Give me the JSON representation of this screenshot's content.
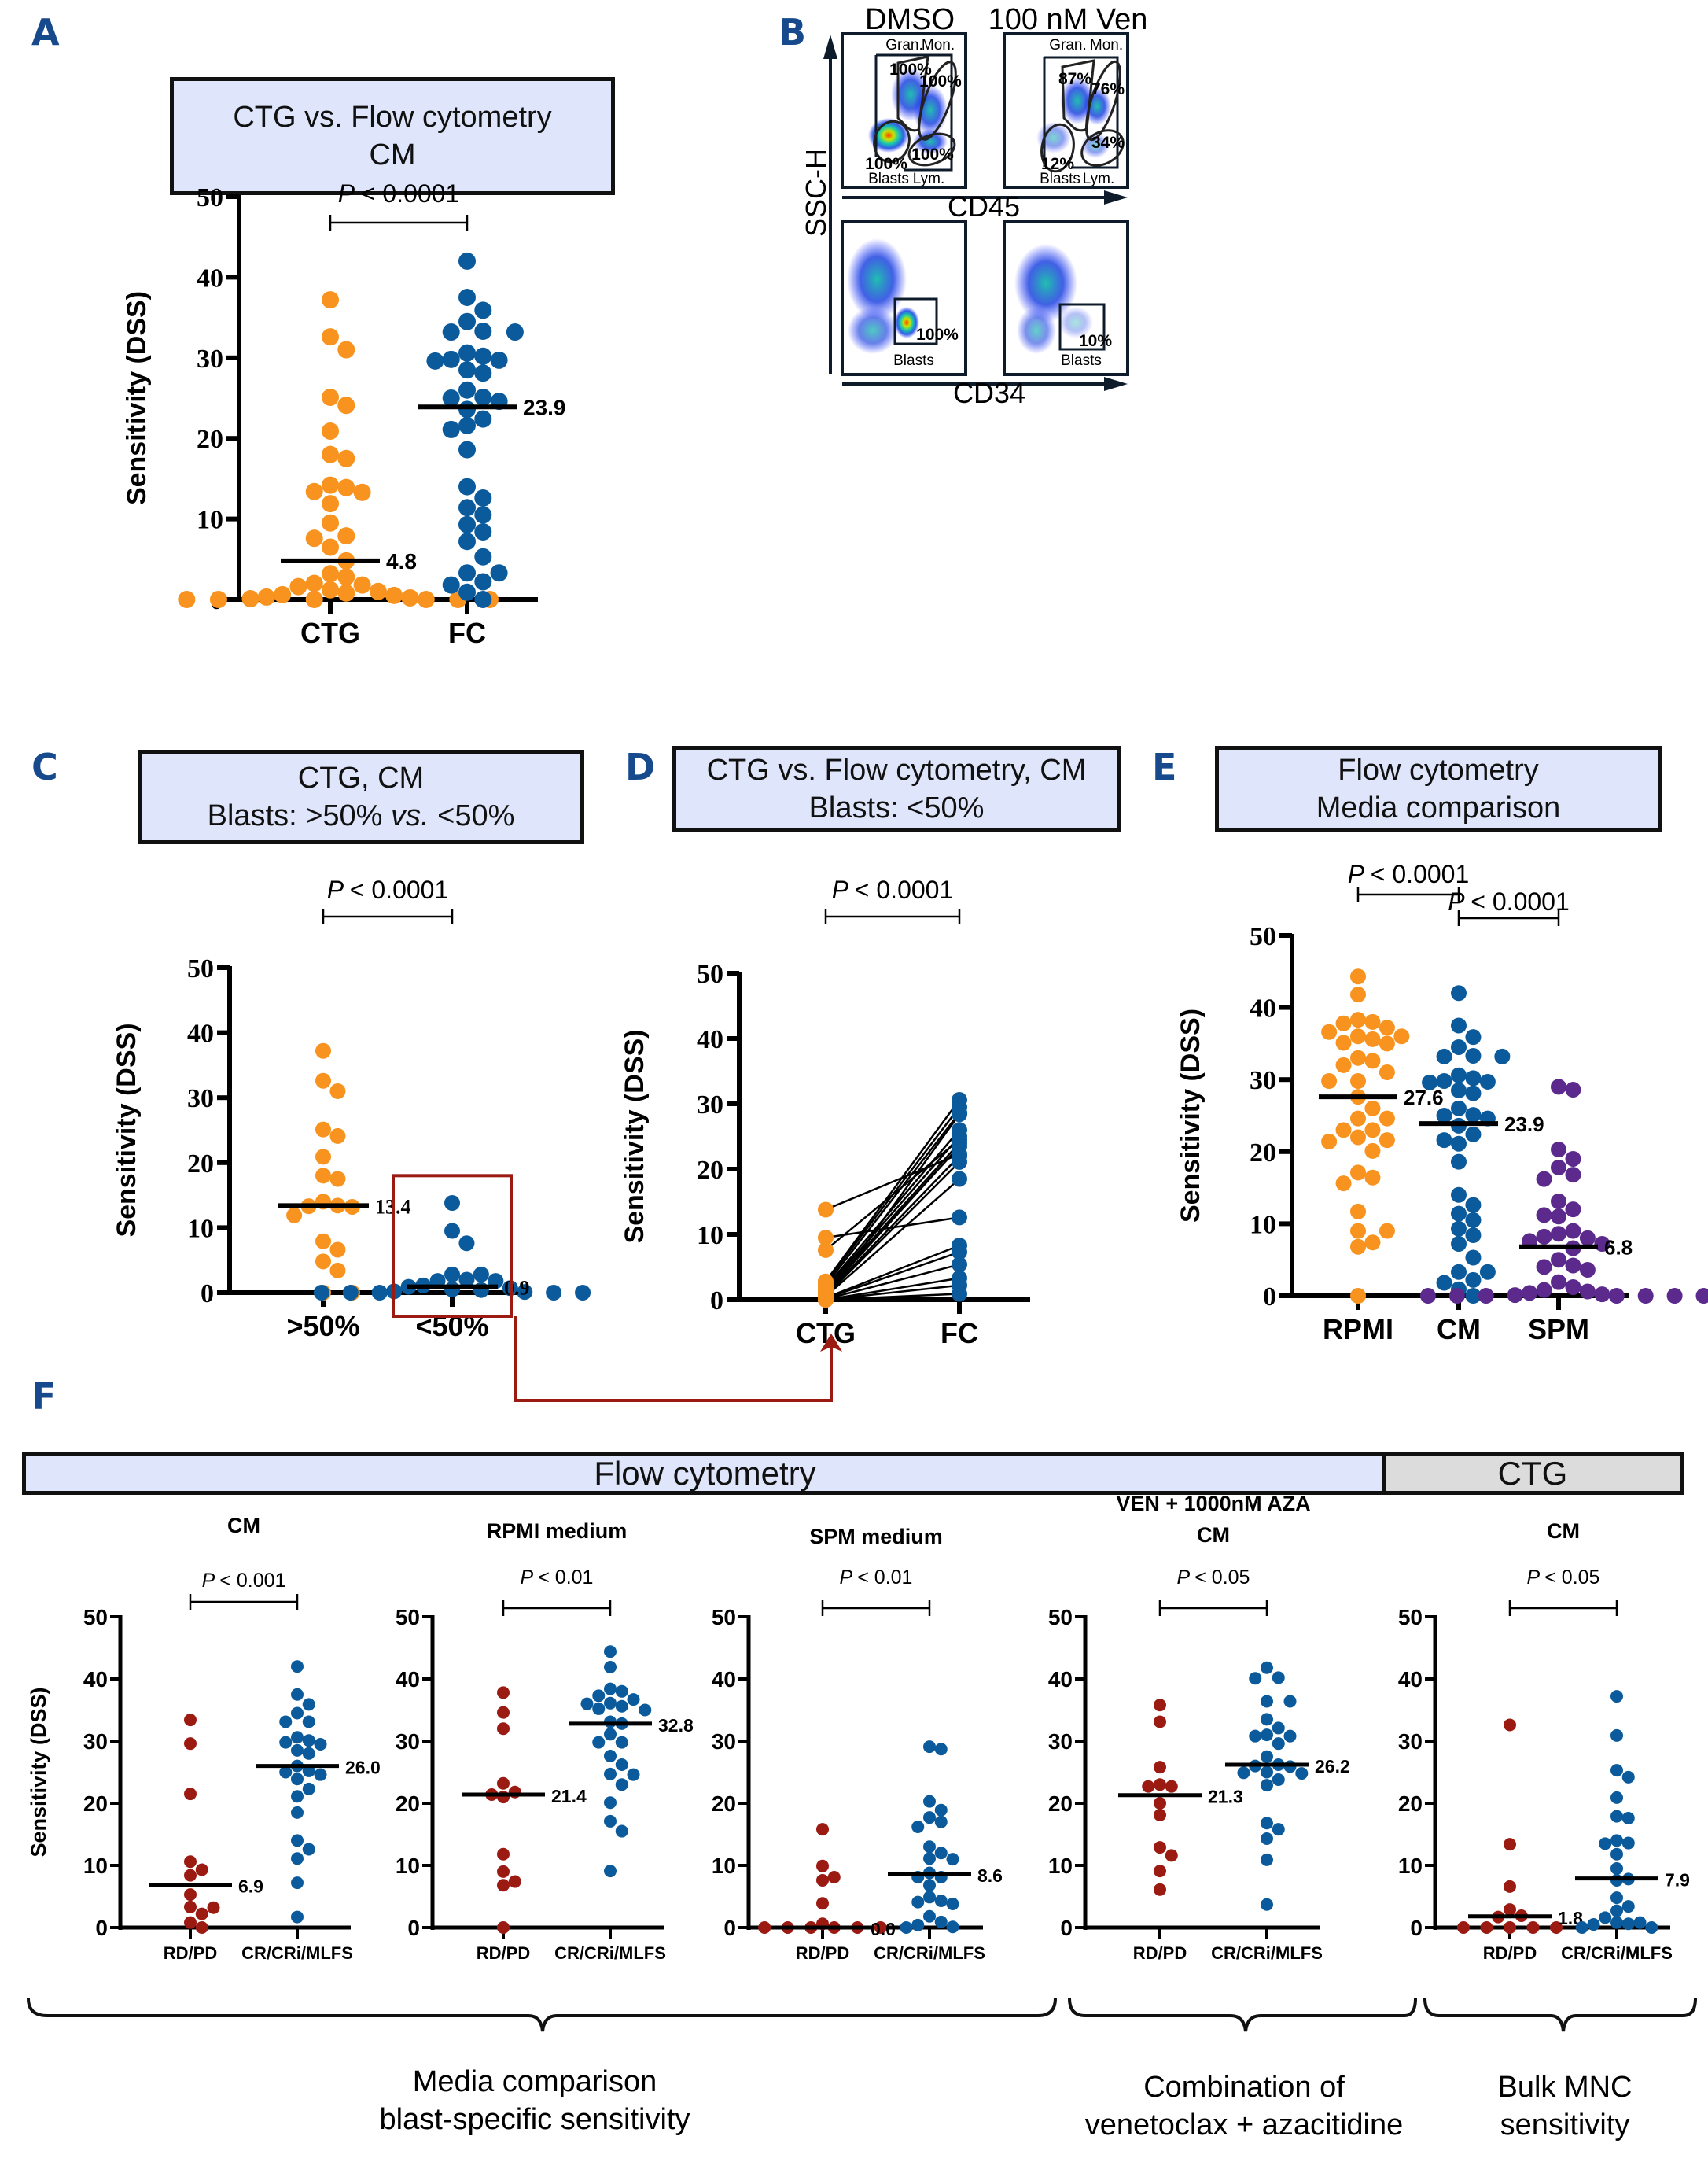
{
  "colors": {
    "orange": "#f7931e",
    "blue": "#0b5a9b",
    "red": "#9b1b13",
    "purple": "#5b2a8c",
    "title_fill": "#dfe6fb",
    "ctg_fill": "#dcdcdc",
    "arrow": "#9b1b13",
    "panel_letter": "#174a8c"
  },
  "panel_letters": {
    "A": "A",
    "B": "B",
    "C": "C",
    "D": "D",
    "E": "E",
    "F": "F"
  },
  "panelA": {
    "title_line1": "CTG vs. Flow cytometry",
    "title_line2": "CM"
  },
  "panelB": {
    "col_titles": [
      "DMSO",
      "100 nM Ven"
    ],
    "y_axis": "SSC-H",
    "x_axis_top": "CD45",
    "x_axis_bottom": "CD34",
    "gate_labels": {
      "gran": "Gran.",
      "mon": "Mon.",
      "blasts": "Blasts",
      "lym": "Lym."
    },
    "dmso_top": {
      "gran": "100%",
      "mon": "100%",
      "lym": "100%",
      "blasts": "100%"
    },
    "ven_top": {
      "gran": "87%",
      "mon": "76%",
      "lym": "34%",
      "blasts": "12%"
    },
    "dmso_bottom": {
      "blasts_pct": "100%",
      "label": "Blasts"
    },
    "ven_bottom": {
      "blasts_pct": "10%",
      "label": "Blasts"
    }
  },
  "panelC": {
    "title_line1": "CTG, CM",
    "title_line2a": "Blasts: >50% ",
    "title_line2b": "vs.",
    "title_line2c": " <50%"
  },
  "panelD": {
    "title_line1": "CTG vs. Flow cytometry, CM",
    "title_line2": "Blasts: <50%"
  },
  "panelE": {
    "title_line1": "Flow cytometry",
    "title_line2": "Media comparison"
  },
  "panelF": {
    "band_flow": "Flow cytometry",
    "band_ctg": "CTG",
    "brace_labels": [
      {
        "line1": "Media comparison",
        "line2": "blast-specific sensitivity"
      },
      {
        "line1": "Combination of",
        "line2": "venetoclax + azacitidine"
      },
      {
        "line1": "Bulk MNC",
        "line2": "sensitivity"
      }
    ]
  },
  "chart_data": [
    {
      "id": "A",
      "type": "scatter",
      "title": "CTG vs. Flow cytometry CM",
      "ylabel": "Sensitivity (DSS)",
      "ylim": [
        0,
        50
      ],
      "yticks": [
        0,
        10,
        20,
        30,
        40,
        50
      ],
      "categories": [
        "CTG",
        "FC"
      ],
      "pvalues": [
        {
          "from": 0,
          "to": 1,
          "text": "< 0.0001"
        }
      ],
      "series": [
        {
          "name": "CTG",
          "color": "orange",
          "median": 4.8,
          "median_label": "4.8",
          "values": [
            37.2,
            32.6,
            31.0,
            25.1,
            24.1,
            20.9,
            18.0,
            17.5,
            13.9,
            14.2,
            13.4,
            13.3,
            11.9,
            9.5,
            7.9,
            7.6,
            6.5,
            4.8,
            3.2,
            2.8,
            2.0,
            1.8,
            1.6,
            1.2,
            1.0,
            0.8,
            0.6,
            0.5,
            0.3,
            0.2,
            0.1,
            0.0,
            0.0,
            0.0,
            0.0,
            0.0,
            0.0
          ]
        },
        {
          "name": "FC",
          "color": "blue",
          "median": 23.9,
          "median_label": "23.9",
          "values": [
            42.0,
            37.5,
            35.9,
            34.5,
            33.2,
            33.2,
            33.3,
            30.2,
            29.7,
            29.8,
            30.6,
            29.6,
            28.1,
            28.5,
            26.0,
            25.0,
            24.6,
            25.1,
            23.6,
            22.4,
            21.6,
            21.1,
            18.6,
            14.0,
            12.6,
            11.4,
            10.5,
            9.3,
            8.4,
            7.2,
            5.3,
            3.3,
            3.3,
            2.2,
            1.8,
            0.9,
            0.0
          ]
        }
      ]
    },
    {
      "id": "C",
      "type": "scatter",
      "title": "CTG, CM Blasts: >50% vs. <50%",
      "ylabel": "Sensitivity (DSS)",
      "ylim": [
        0,
        50
      ],
      "yticks": [
        0,
        10,
        20,
        30,
        40,
        50
      ],
      "categories": [
        ">50%",
        "<50%"
      ],
      "pvalues": [
        {
          "from": 0,
          "to": 1,
          "text": "< 0.0001"
        }
      ],
      "series": [
        {
          "name": ">50%",
          "color": "orange",
          "median": 13.4,
          "median_label": "13.4",
          "values": [
            37.2,
            32.6,
            31.0,
            25.1,
            24.1,
            20.9,
            18.0,
            17.5,
            14.0,
            13.3,
            13.4,
            13.2,
            11.9,
            7.9,
            6.6,
            4.8,
            3.4,
            0.0,
            0.0
          ]
        },
        {
          "name": "<50%",
          "color": "blue",
          "median": 0.9,
          "median_label": "0.9",
          "values": [
            13.8,
            9.5,
            7.6,
            2.8,
            2.8,
            2.0,
            1.8,
            1.8,
            1.1,
            0.9,
            0.7,
            0.5,
            0.4,
            0.2,
            0.1,
            0.0,
            0.0,
            0.0,
            0.0,
            0.0
          ]
        }
      ],
      "highlight_box_category": "<50%"
    },
    {
      "id": "D",
      "type": "line",
      "title": "CTG vs. Flow cytometry, CM Blasts: <50%",
      "ylabel": "Sensitivity (DSS)",
      "ylim": [
        0,
        50
      ],
      "yticks": [
        0,
        10,
        20,
        30,
        40,
        50
      ],
      "categories": [
        "CTG",
        "FC"
      ],
      "pvalues": [
        {
          "from": 0,
          "to": 1,
          "text": "< 0.0001"
        }
      ],
      "pairs": [
        [
          13.8,
          22.3
        ],
        [
          9.5,
          12.6
        ],
        [
          7.6,
          24.5
        ],
        [
          2.8,
          30.6
        ],
        [
          2.6,
          29.5
        ],
        [
          2.2,
          28.6
        ],
        [
          1.9,
          26.0
        ],
        [
          1.6,
          25.0
        ],
        [
          1.3,
          24.0
        ],
        [
          1.0,
          23.5
        ],
        [
          0.8,
          22.0
        ],
        [
          0.6,
          21.1
        ],
        [
          0.5,
          18.5
        ],
        [
          0.3,
          8.3
        ],
        [
          0.2,
          7.3
        ],
        [
          0.1,
          5.4
        ],
        [
          0.0,
          3.3
        ],
        [
          0.0,
          2.2
        ],
        [
          0.0,
          0.9
        ],
        [
          0.0,
          28.4
        ]
      ],
      "colors": [
        "orange",
        "blue"
      ]
    },
    {
      "id": "E",
      "type": "scatter",
      "title": "Flow cytometry Media comparison",
      "ylabel": "Sensitivity (DSS)",
      "ylim": [
        0,
        50
      ],
      "yticks": [
        0,
        10,
        20,
        30,
        40,
        50
      ],
      "categories": [
        "RPMI",
        "CM",
        "SPM"
      ],
      "pvalues": [
        {
          "from": 0,
          "to": 1,
          "text": "< 0.0001"
        },
        {
          "from": 1,
          "to": 2,
          "text": "< 0.0001"
        }
      ],
      "series": [
        {
          "name": "RPMI",
          "color": "orange",
          "median": 27.6,
          "median_label": "27.6",
          "values": [
            44.3,
            41.8,
            38.3,
            37.8,
            37.2,
            38.0,
            36.0,
            36.6,
            35.6,
            35.0,
            36.0,
            35.1,
            33.0,
            32.6,
            32.0,
            31.0,
            29.8,
            29.8,
            27.6,
            26.0,
            24.6,
            24.6,
            23.0,
            23.0,
            22.0,
            21.4,
            21.6,
            20.1,
            17.1,
            16.4,
            15.6,
            11.7,
            9.0,
            9.0,
            7.4,
            6.8,
            0.0
          ]
        },
        {
          "name": "CM",
          "color": "blue",
          "median": 23.9,
          "median_label": "23.9",
          "values": [
            42.0,
            37.5,
            35.9,
            34.5,
            33.2,
            33.2,
            33.3,
            30.2,
            29.7,
            29.8,
            30.6,
            29.6,
            28.1,
            28.5,
            26.0,
            25.0,
            24.6,
            25.1,
            23.6,
            22.4,
            21.6,
            21.1,
            18.6,
            14.0,
            12.6,
            11.4,
            10.5,
            9.3,
            8.4,
            7.2,
            5.3,
            3.3,
            3.3,
            2.2,
            1.8,
            0.9,
            0.0
          ]
        },
        {
          "name": "SPM",
          "color": "purple",
          "median": 6.8,
          "median_label": "6.8",
          "values": [
            29.0,
            28.6,
            20.3,
            19.0,
            17.8,
            16.8,
            16.2,
            13.1,
            12.0,
            11.2,
            11.0,
            9.0,
            8.6,
            8.2,
            8.0,
            7.6,
            7.2,
            6.6,
            5.0,
            4.2,
            4.0,
            3.6,
            1.9,
            1.2,
            0.8,
            0.6,
            0.4,
            0.2,
            0.1,
            0.0,
            0.0,
            0.0,
            0.0,
            0.0,
            0.0,
            0.0
          ]
        }
      ]
    },
    {
      "id": "F1",
      "type": "scatter",
      "title": "CM",
      "group": "Flow cytometry",
      "ylabel": "Sensitivity (DSS)",
      "ylim": [
        0,
        50
      ],
      "yticks": [
        0,
        10,
        20,
        30,
        40,
        50
      ],
      "categories": [
        "RD/PD",
        "CR/CRi/MLFS"
      ],
      "pvalues": [
        {
          "from": 0,
          "to": 1,
          "text": "< 0.001"
        }
      ],
      "series": [
        {
          "name": "RD/PD",
          "color": "red",
          "median": 6.9,
          "median_label": "6.9",
          "values": [
            33.4,
            29.6,
            21.5,
            10.6,
            9.3,
            8.4,
            5.3,
            3.3,
            3.2,
            2.2,
            0.8,
            0.0
          ]
        },
        {
          "name": "CR/CRi/MLFS",
          "color": "blue",
          "median": 26.0,
          "median_label": "26.0",
          "values": [
            42.0,
            37.5,
            35.9,
            34.5,
            33.1,
            33.1,
            30.1,
            30.6,
            29.5,
            29.8,
            28.5,
            28.0,
            26.0,
            25.2,
            25.0,
            24.6,
            23.9,
            22.3,
            21.1,
            18.5,
            14.0,
            12.6,
            11.1,
            7.2,
            1.7
          ]
        }
      ]
    },
    {
      "id": "F2",
      "type": "scatter",
      "title": "RPMI medium",
      "group": "Flow cytometry",
      "ylabel": "",
      "ylim": [
        0,
        50
      ],
      "yticks": [
        0,
        10,
        20,
        30,
        40,
        50
      ],
      "categories": [
        "RD/PD",
        "CR/CRi/MLFS"
      ],
      "pvalues": [
        {
          "from": 0,
          "to": 1,
          "text": "< 0.01"
        }
      ],
      "series": [
        {
          "name": "RD/PD",
          "color": "red",
          "median": 21.4,
          "median_label": "21.4",
          "values": [
            37.8,
            34.6,
            32.0,
            23.2,
            21.8,
            21.4,
            21.0,
            11.8,
            9.0,
            7.4,
            6.8,
            0.0
          ]
        },
        {
          "name": "CR/CRi/MLFS",
          "color": "blue",
          "median": 32.8,
          "median_label": "32.8",
          "values": [
            44.4,
            41.9,
            38.4,
            38.0,
            37.3,
            36.7,
            36.1,
            36.0,
            35.6,
            35.2,
            35.0,
            33.1,
            32.8,
            31.1,
            29.8,
            29.8,
            27.6,
            26.2,
            24.7,
            24.6,
            23.0,
            20.1,
            17.1,
            15.5,
            9.1
          ]
        }
      ]
    },
    {
      "id": "F3",
      "type": "scatter",
      "title": "SPM medium",
      "group": "Flow cytometry",
      "ylabel": "",
      "ylim": [
        0,
        50
      ],
      "yticks": [
        0,
        10,
        20,
        30,
        40,
        50
      ],
      "categories": [
        "RD/PD",
        "CR/CRi/MLFS"
      ],
      "pvalues": [
        {
          "from": 0,
          "to": 1,
          "text": "< 0.01"
        }
      ],
      "series": [
        {
          "name": "RD/PD",
          "color": "red",
          "median": 0.0,
          "median_label": "0.0",
          "values": [
            15.8,
            9.9,
            7.6,
            8.1,
            3.9,
            0.6,
            0.0,
            0.0,
            0.0,
            0.0,
            0.0,
            0.0
          ]
        },
        {
          "name": "CR/CRi/MLFS",
          "color": "blue",
          "median": 8.6,
          "median_label": "8.6",
          "values": [
            29.1,
            28.7,
            20.3,
            18.9,
            17.7,
            17.0,
            16.2,
            13.0,
            12.0,
            11.1,
            11.0,
            8.8,
            8.1,
            8.1,
            6.8,
            4.9,
            4.3,
            4.1,
            3.8,
            1.8,
            0.9,
            0.4,
            0.1,
            0.0
          ]
        }
      ]
    },
    {
      "id": "F4",
      "type": "scatter",
      "title": "VEN + 1000nM AZA CM",
      "group": "Flow cytometry",
      "ylabel": "",
      "ylim": [
        0,
        50
      ],
      "yticks": [
        0,
        10,
        20,
        30,
        40,
        50
      ],
      "categories": [
        "RD/PD",
        "CR/CRi/MLFS"
      ],
      "pvalues": [
        {
          "from": 0,
          "to": 1,
          "text": "< 0.05"
        }
      ],
      "series": [
        {
          "name": "RD/PD",
          "color": "red",
          "median": 21.3,
          "median_label": "21.3",
          "values": [
            35.8,
            33.1,
            25.8,
            22.7,
            22.7,
            23.0,
            20.0,
            18.1,
            12.9,
            11.6,
            9.1,
            6.1
          ]
        },
        {
          "name": "CR/CRi/MLFS",
          "color": "blue",
          "median": 26.2,
          "median_label": "26.2",
          "values": [
            41.8,
            40.1,
            40.2,
            36.4,
            36.4,
            33.5,
            32.1,
            30.8,
            30.8,
            31.0,
            29.6,
            27.5,
            26.2,
            26.0,
            25.9,
            25.0,
            24.9,
            24.8,
            23.8,
            22.9,
            16.8,
            15.8,
            14.3,
            10.9,
            3.7
          ]
        }
      ]
    },
    {
      "id": "F5",
      "type": "scatter",
      "title": "CM",
      "group": "CTG",
      "ylabel": "",
      "ylim": [
        0,
        50
      ],
      "yticks": [
        0,
        10,
        20,
        30,
        40,
        50
      ],
      "categories": [
        "RD/PD",
        "CR/CRi/MLFS"
      ],
      "pvalues": [
        {
          "from": 0,
          "to": 1,
          "text": "< 0.05"
        }
      ],
      "series": [
        {
          "name": "RD/PD",
          "color": "red",
          "median": 1.8,
          "median_label": "1.8",
          "values": [
            32.6,
            13.4,
            6.6,
            2.9,
            1.9,
            1.7,
            0.0,
            0.0,
            0.0,
            0.0,
            0.0
          ]
        },
        {
          "name": "CR/CRi/MLFS",
          "color": "blue",
          "median": 7.9,
          "median_label": "7.9",
          "values": [
            37.2,
            30.9,
            25.3,
            24.2,
            20.9,
            17.9,
            17.6,
            14.0,
            13.6,
            13.5,
            11.8,
            9.5,
            7.6,
            7.8,
            4.8,
            3.4,
            2.7,
            1.6,
            0.8,
            0.6,
            0.8,
            0.5,
            0.0,
            0.0
          ]
        }
      ]
    }
  ]
}
